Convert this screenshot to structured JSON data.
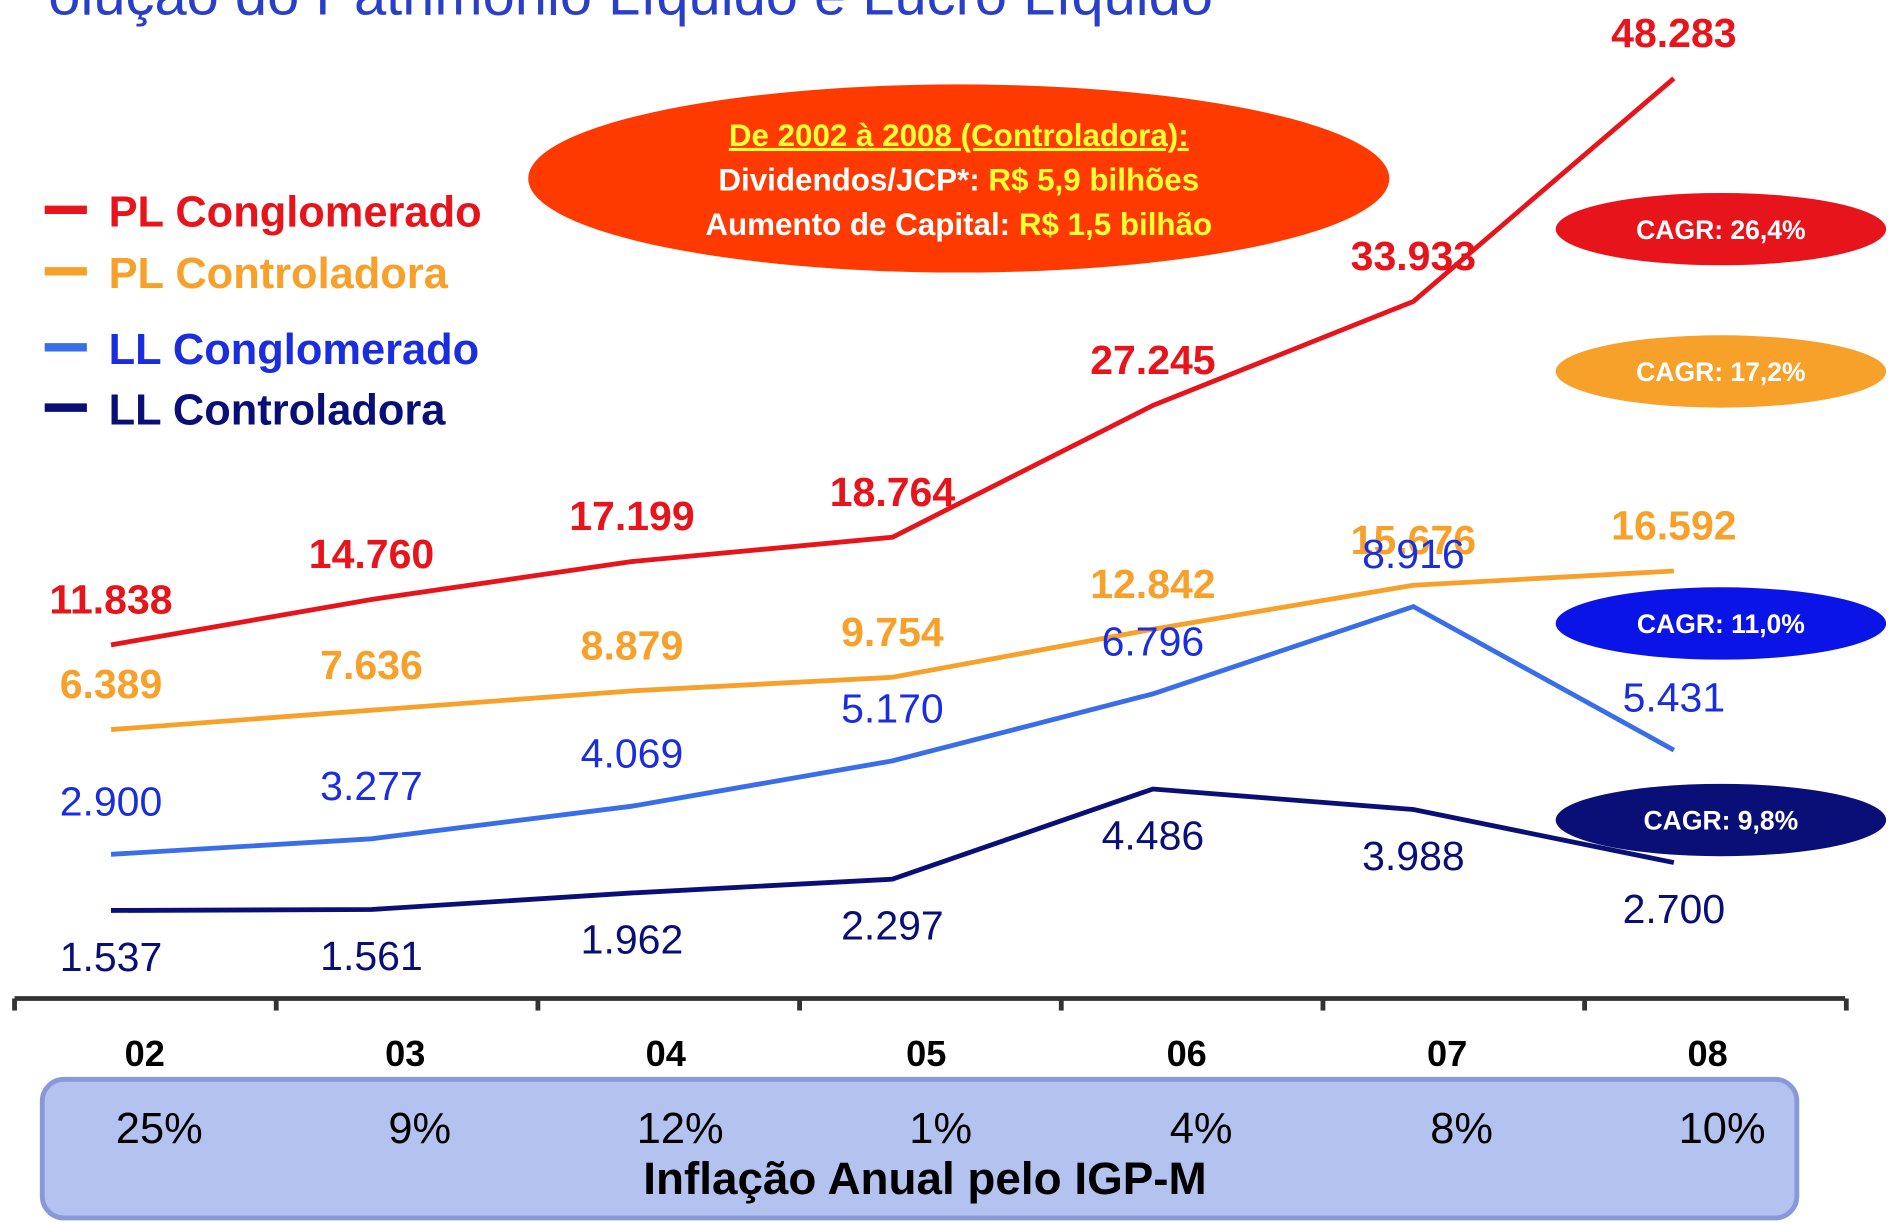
{
  "title": "olução do Patrimônio Líquido e Lucro Líquido",
  "chart_data": {
    "type": "line",
    "categories": [
      "02",
      "03",
      "04",
      "05",
      "06",
      "07",
      "08"
    ],
    "series": [
      {
        "name": "PL Conglomerado",
        "color": "#e8141b",
        "values": [
          11838,
          14760,
          17199,
          18764,
          27245,
          33933,
          48283
        ],
        "value_labels": [
          "11.838",
          "14.760",
          "17.199",
          "18.764",
          "27.245",
          "33.933",
          "48.283"
        ]
      },
      {
        "name": "PL Controladora",
        "color": "#f7a02a",
        "values": [
          6389,
          7636,
          8879,
          9754,
          12842,
          15676,
          16592
        ],
        "value_labels": [
          "6.389",
          "7.636",
          "8.879",
          "9.754",
          "12.842",
          "15.676",
          "16.592"
        ]
      },
      {
        "name": "LL Conglomerado",
        "color": "#3a6ee8",
        "axis": "y2",
        "values": [
          2900,
          3277,
          4069,
          5170,
          6796,
          8916,
          5431
        ],
        "value_labels": [
          "2.900",
          "3.277",
          "4.069",
          "5.170",
          "6.796",
          "8.916",
          "5.431"
        ]
      },
      {
        "name": "LL Controladora",
        "color": "#0a0f78",
        "axis": "y2",
        "values": [
          1537,
          1561,
          1962,
          2297,
          4486,
          3988,
          2700
        ],
        "value_labels": [
          "1.537",
          "1.561",
          "1.962",
          "2.297",
          "4.486",
          "3.988",
          "2.700"
        ]
      }
    ],
    "cagr_labels": [
      "CAGR: 26,4%",
      "CAGR: 17,2%",
      "CAGR: 11,0%",
      "CAGR: 9,8%"
    ],
    "callout": {
      "heading": "De 2002 à 2008 (Controladora):",
      "line1_label": "Dividendos/JCP*:",
      "line1_value": "R$ 5,9 bilhões",
      "line2_label": "Aumento de Capital:",
      "line2_value": "R$ 1,5 bilhão"
    }
  },
  "inflation": {
    "title": "Inflação Anual pelo IGP-M",
    "values": [
      25,
      9,
      12,
      1,
      4,
      8,
      10
    ],
    "value_labels": [
      "25%",
      "9%",
      "12%",
      "1%",
      "4%",
      "8%",
      "10%"
    ]
  }
}
